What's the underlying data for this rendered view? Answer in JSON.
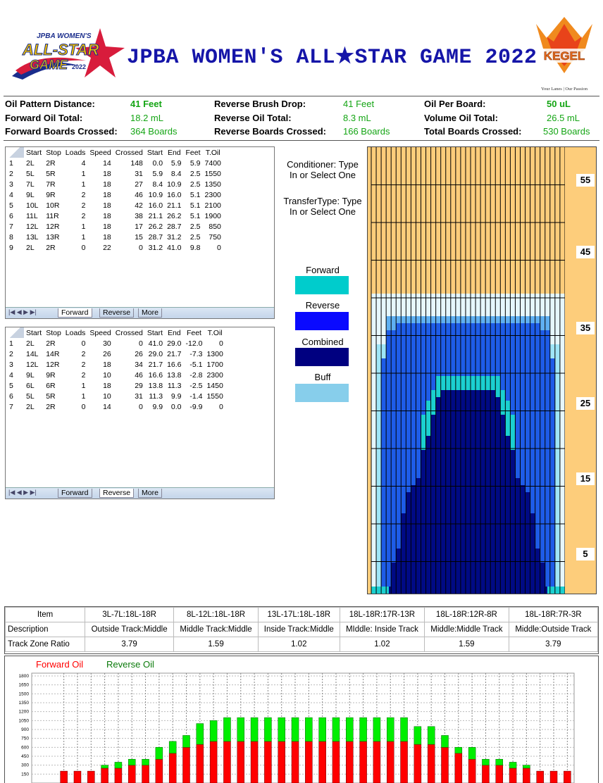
{
  "header": {
    "title": "JPBA WOMEN'S ALL★STAR GAME 2022",
    "logo_left_text": "JPBA WOMEN'S ALL-STAR GAME 2022",
    "logo_right_text": "KEGEL",
    "logo_right_tagline": "Your Lanes | Our Passion"
  },
  "stats": {
    "oil_pattern_distance": {
      "label": "Oil Pattern Distance:",
      "value": "41 Feet"
    },
    "forward_oil_total": {
      "label": "Forward Oil Total:",
      "value": "18.2 mL"
    },
    "forward_boards_crossed": {
      "label": "Forward Boards Crossed:",
      "value": "364 Boards"
    },
    "reverse_brush_drop": {
      "label": "Reverse Brush Drop:",
      "value": "41 Feet"
    },
    "reverse_oil_total": {
      "label": "Reverse Oil Total:",
      "value": "8.3 mL"
    },
    "reverse_boards_crossed": {
      "label": "Reverse Boards Crossed:",
      "value": "166 Boards"
    },
    "oil_per_board": {
      "label": "Oil Per Board:",
      "value": "50 uL"
    },
    "volume_oil_total": {
      "label": "Volume Oil Total:",
      "value": "26.5 mL"
    },
    "total_boards_crossed": {
      "label": "Total Boards Crossed:",
      "value": "530 Boards"
    }
  },
  "table_headers": [
    "",
    "Start",
    "Stop",
    "Loads",
    "Speed",
    "Crossed",
    "Start",
    "End",
    "Feet",
    "T.Oil"
  ],
  "forward_table": [
    [
      "1",
      "2L",
      "2R",
      "4",
      "14",
      "148",
      "0.0",
      "5.9",
      "5.9",
      "7400"
    ],
    [
      "2",
      "5L",
      "5R",
      "1",
      "18",
      "31",
      "5.9",
      "8.4",
      "2.5",
      "1550"
    ],
    [
      "3",
      "7L",
      "7R",
      "1",
      "18",
      "27",
      "8.4",
      "10.9",
      "2.5",
      "1350"
    ],
    [
      "4",
      "9L",
      "9R",
      "2",
      "18",
      "46",
      "10.9",
      "16.0",
      "5.1",
      "2300"
    ],
    [
      "5",
      "10L",
      "10R",
      "2",
      "18",
      "42",
      "16.0",
      "21.1",
      "5.1",
      "2100"
    ],
    [
      "6",
      "11L",
      "11R",
      "2",
      "18",
      "38",
      "21.1",
      "26.2",
      "5.1",
      "1900"
    ],
    [
      "7",
      "12L",
      "12R",
      "1",
      "18",
      "17",
      "26.2",
      "28.7",
      "2.5",
      "850"
    ],
    [
      "8",
      "13L",
      "13R",
      "1",
      "18",
      "15",
      "28.7",
      "31.2",
      "2.5",
      "750"
    ],
    [
      "9",
      "2L",
      "2R",
      "0",
      "22",
      "0",
      "31.2",
      "41.0",
      "9.8",
      "0"
    ]
  ],
  "reverse_table": [
    [
      "1",
      "2L",
      "2R",
      "0",
      "30",
      "0",
      "41.0",
      "29.0",
      "-12.0",
      "0"
    ],
    [
      "2",
      "14L",
      "14R",
      "2",
      "26",
      "26",
      "29.0",
      "21.7",
      "-7.3",
      "1300"
    ],
    [
      "3",
      "12L",
      "12R",
      "2",
      "18",
      "34",
      "21.7",
      "16.6",
      "-5.1",
      "1700"
    ],
    [
      "4",
      "9L",
      "9R",
      "2",
      "10",
      "46",
      "16.6",
      "13.8",
      "-2.8",
      "2300"
    ],
    [
      "5",
      "6L",
      "6R",
      "1",
      "18",
      "29",
      "13.8",
      "11.3",
      "-2.5",
      "1450"
    ],
    [
      "6",
      "5L",
      "5R",
      "1",
      "10",
      "31",
      "11.3",
      "9.9",
      "-1.4",
      "1550"
    ],
    [
      "7",
      "2L",
      "2R",
      "0",
      "14",
      "0",
      "9.9",
      "0.0",
      "-9.9",
      "0"
    ]
  ],
  "tabs": {
    "forward": "Forward",
    "reverse": "Reverse",
    "more": "More"
  },
  "middle": {
    "conditioner": "Conditioner: Type In or Select One",
    "transfer": "TransferType: Type In or Select One",
    "legend": [
      {
        "label": "Forward",
        "color": "#00cccc"
      },
      {
        "label": "Reverse",
        "color": "#0a0aff"
      },
      {
        "label": "Combined",
        "color": "#000080"
      },
      {
        "label": "Buff",
        "color": "#87ceeb"
      }
    ]
  },
  "lane": {
    "distance_labels": [
      "55",
      "45",
      "35",
      "25",
      "15",
      "5"
    ],
    "colors": {
      "dry": "#fdcd7b",
      "buff": "#e6f7fd",
      "buff_mid": "#9fe6f8",
      "reverse": "#1e5ce8",
      "mid": "#0b2fd0",
      "combined": "#000a84",
      "forward": "#1bd0d0"
    }
  },
  "zone_table": {
    "item_label": "Item",
    "description_label": "Description",
    "ratio_label": "Track Zone Ratio",
    "columns": [
      {
        "item": "3L-7L:18L-18R",
        "description": "Outside Track:Middle",
        "ratio": "3.79"
      },
      {
        "item": "8L-12L:18L-18R",
        "description": "Middle Track:Middle",
        "ratio": "1.59"
      },
      {
        "item": "13L-17L:18L-18R",
        "description": "Inside Track:Middle",
        "ratio": "1.02"
      },
      {
        "item": "18L-18R:17R-13R",
        "description": "MIddle: Inside Track",
        "ratio": "1.02"
      },
      {
        "item": "18L-18R:12R-8R",
        "description": "Middle:Middle Track",
        "ratio": "1.59"
      },
      {
        "item": "18L-18R:7R-3R",
        "description": "Middle:Outside Track",
        "ratio": "3.79"
      }
    ]
  },
  "chart_data": {
    "type": "bar",
    "stacked": true,
    "series": [
      {
        "name": "Forward Oil",
        "color": "#ff0000",
        "values": [
          200,
          200,
          200,
          250,
          250,
          300,
          300,
          400,
          500,
          600,
          650,
          700,
          700,
          700,
          700,
          700,
          700,
          700,
          700,
          700,
          700,
          700,
          700,
          700,
          700,
          700,
          650,
          650,
          600,
          500,
          400,
          300,
          300,
          250,
          250,
          200,
          200,
          200
        ]
      },
      {
        "name": "Reverse Oil",
        "color": "#00ee00",
        "values": [
          0,
          0,
          0,
          50,
          100,
          100,
          100,
          200,
          200,
          200,
          350,
          350,
          400,
          400,
          400,
          400,
          400,
          400,
          400,
          400,
          400,
          400,
          400,
          400,
          400,
          400,
          300,
          300,
          200,
          100,
          200,
          100,
          100,
          100,
          50,
          0,
          0,
          0
        ]
      }
    ],
    "ylim": [
      0,
      1800
    ],
    "y_ticks": [
      150,
      300,
      450,
      600,
      750,
      900,
      1050,
      1200,
      1350,
      1500,
      1650,
      1800
    ],
    "grid": true,
    "legend_position": "top-left"
  }
}
